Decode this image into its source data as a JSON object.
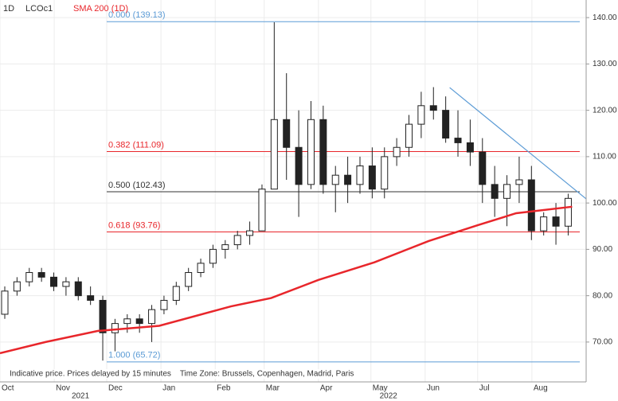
{
  "header": {
    "interval": "1D",
    "symbol": "LCOc1",
    "indicator": "SMA 200 (1D)"
  },
  "footer": "Indicative price. Prices delayed by 15 minutes    Time Zone: Brussels, Copenhagen, Madrid, Paris",
  "chart_data": {
    "type": "candlestick",
    "x": [
      0,
      7,
      14,
      21,
      28,
      35,
      42,
      49,
      56,
      63,
      70,
      77,
      84,
      91,
      98,
      105,
      112,
      119,
      126,
      133,
      140,
      147,
      154,
      161,
      168,
      175,
      182,
      189,
      196,
      203,
      210,
      217,
      224,
      231,
      238,
      245,
      252,
      259,
      266,
      273,
      280,
      287,
      294,
      301,
      308,
      315,
      322
    ],
    "open": [
      76,
      81,
      83,
      85,
      84,
      82,
      83,
      80,
      79,
      72,
      74,
      75,
      74,
      77,
      79,
      82,
      85,
      87,
      90,
      91,
      93,
      94,
      103,
      118,
      112,
      104,
      118,
      104,
      106,
      104,
      108,
      103,
      110,
      112,
      117,
      121,
      120,
      114,
      113,
      111,
      104,
      101,
      104,
      105,
      94,
      97,
      95
    ],
    "high": [
      82,
      84,
      86,
      86,
      85,
      84,
      84,
      82,
      80,
      75,
      76,
      76,
      78,
      80,
      83,
      86,
      88,
      91,
      92,
      94,
      96,
      104,
      139,
      128,
      120,
      122,
      121,
      108,
      110,
      110,
      112,
      112,
      114,
      119,
      124,
      125,
      123,
      120,
      118,
      114,
      108,
      106,
      110,
      108,
      98,
      100,
      102
    ],
    "low": [
      75,
      80,
      82,
      83,
      81,
      80,
      79,
      78,
      66,
      68,
      72,
      72,
      70,
      76,
      78,
      81,
      84,
      86,
      88,
      90,
      91,
      94,
      103,
      105,
      97,
      103,
      102,
      98,
      100,
      102,
      101,
      101,
      108,
      110,
      114,
      118,
      113,
      110,
      108,
      100,
      97,
      95,
      100,
      92,
      93,
      91,
      93
    ],
    "close": [
      81,
      83,
      85,
      84,
      82,
      83,
      80,
      79,
      72,
      74,
      75,
      74,
      77,
      79,
      82,
      85,
      87,
      90,
      91,
      93,
      94,
      103,
      118,
      112,
      104,
      118,
      104,
      106,
      104,
      108,
      103,
      110,
      112,
      117,
      121,
      120,
      114,
      113,
      111,
      104,
      101,
      104,
      105,
      94,
      97,
      95,
      101
    ],
    "sma": {
      "name": "SMA 200 (1D)",
      "color": "#e8262b",
      "x": [
        0,
        26,
        56,
        91,
        132,
        155,
        182,
        214,
        245,
        273,
        295,
        327
      ],
      "values": [
        67.6,
        70,
        72.4,
        73.5,
        77.7,
        79.5,
        83.4,
        87.2,
        91.8,
        95.2,
        97.8,
        99.2
      ]
    },
    "fib_levels": [
      {
        "label": "0.000 (139.13)",
        "value": 139.13,
        "color": "#5b9bd5"
      },
      {
        "label": "0.382 (111.09)",
        "value": 111.09,
        "color": "#e8262b"
      },
      {
        "label": "0.500 (102.43)",
        "value": 102.43,
        "color": "#333333"
      },
      {
        "label": "0.618 (93.76)",
        "value": 93.76,
        "color": "#e8262b"
      },
      {
        "label": "1.000 (65.72)",
        "value": 65.72,
        "color": "#5b9bd5"
      }
    ],
    "fib_start": 61,
    "trendline": {
      "x": [
        257,
        335
      ],
      "values": [
        124.9,
        100.9
      ],
      "color": "#5b9bd5"
    },
    "xlim": [
      0,
      335
    ],
    "ylim": [
      61.4,
      143.8
    ],
    "xticks": [
      {
        "value": 0,
        "label": "Oct"
      },
      {
        "value": 31,
        "label": "Nov"
      },
      {
        "value": 61,
        "label": "Dec"
      },
      {
        "value": 92,
        "label": "Jan"
      },
      {
        "value": 123,
        "label": "Feb"
      },
      {
        "value": 151,
        "label": "Mar"
      },
      {
        "value": 182,
        "label": "Apr"
      },
      {
        "value": 212,
        "label": "May"
      },
      {
        "value": 243,
        "label": "Jun"
      },
      {
        "value": 273,
        "label": "Jul"
      },
      {
        "value": 304,
        "label": "Aug"
      }
    ],
    "year_ticks": [
      {
        "value": 46,
        "label": "2021"
      },
      {
        "value": 222,
        "label": "2022"
      }
    ],
    "yticks": [
      {
        "value": 70,
        "label": "70.00"
      },
      {
        "value": 80,
        "label": "80.00"
      },
      {
        "value": 90,
        "label": "90.00"
      },
      {
        "value": 100,
        "label": "100.00"
      },
      {
        "value": 110,
        "label": "110.00"
      },
      {
        "value": 120,
        "label": "120.00"
      },
      {
        "value": 130,
        "label": "130.00"
      },
      {
        "value": 140,
        "label": "140.00"
      }
    ],
    "grid": true
  }
}
